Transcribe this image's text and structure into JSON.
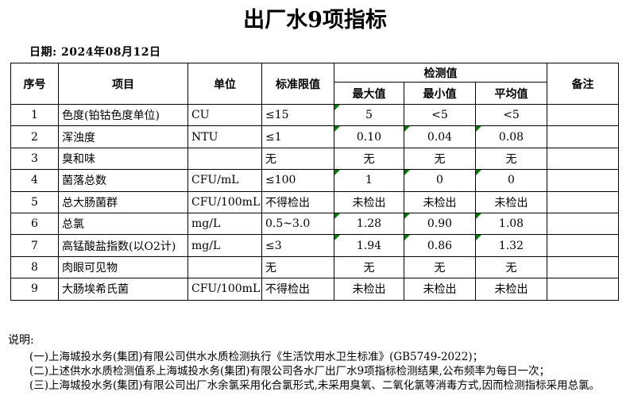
{
  "page": {
    "title": "出厂水9项指标",
    "date_line": "日期: 2024年08月12日"
  },
  "colors": {
    "background": "#ffffff",
    "text": "#000000",
    "table_border": "#000000",
    "accent_green": "#008000"
  },
  "table": {
    "headers": {
      "no": "序号",
      "item": "项目",
      "unit": "单位",
      "limit": "标准限值",
      "detection": "检测值",
      "max": "最大值",
      "min": "最小值",
      "avg": "平均值",
      "remark": "备注"
    },
    "rows": [
      {
        "no": "1",
        "item": "色度(铂钴色度单位)",
        "unit": "CU",
        "limit": "≤15",
        "max": "5",
        "min": "<5",
        "avg": "<5",
        "green_marks": [
          "max"
        ]
      },
      {
        "no": "2",
        "item": "浑浊度",
        "unit": "NTU",
        "limit": "≤1",
        "max": "0.10",
        "min": "0.04",
        "avg": "0.08",
        "green_marks": [
          "max",
          "min",
          "avg"
        ]
      },
      {
        "no": "3",
        "item": "臭和味",
        "unit": "",
        "limit": "无",
        "max": "无",
        "min": "无",
        "avg": "无",
        "green_marks": []
      },
      {
        "no": "4",
        "item": "菌落总数",
        "unit": "CFU/mL",
        "limit": "≤100",
        "max": "1",
        "min": "0",
        "avg": "0",
        "green_marks": [
          "max",
          "min",
          "avg"
        ]
      },
      {
        "no": "5",
        "item": "总大肠菌群",
        "unit": "CFU/100mL",
        "limit": "不得检出",
        "max": "未检出",
        "min": "未检出",
        "avg": "未检出",
        "green_marks": []
      },
      {
        "no": "6",
        "item": "总氯",
        "unit": "mg/L",
        "limit": "0.5~3.0",
        "max": "1.28",
        "min": "0.90",
        "avg": "1.08",
        "green_marks": [
          "max",
          "min",
          "avg"
        ]
      },
      {
        "no": "7",
        "item": "高锰酸盐指数(以O2计)",
        "unit": "mg/L",
        "limit": "≤3",
        "max": "1.94",
        "min": "0.86",
        "avg": "1.32",
        "green_marks": [
          "max",
          "min",
          "avg"
        ]
      },
      {
        "no": "8",
        "item": "肉眼可见物",
        "unit": "",
        "limit": "无",
        "max": "无",
        "min": "无",
        "avg": "无",
        "green_marks": []
      },
      {
        "no": "9",
        "item": "大肠埃希氏菌",
        "unit": "CFU/100mL",
        "limit": "不得检出",
        "max": "未检出",
        "min": "未检出",
        "avg": "未检出",
        "green_marks": []
      }
    ]
  },
  "notes": {
    "label": "说明:",
    "items": [
      "(一)上海城投水务(集团)有限公司供水水质检测执行《生活饮用水卫生标准》(GB5749-2022)；",
      "(二)上述供水水质检测值系上海城投水务(集团)有限公司各水厂出厂水9项指标检测结果,公布频率为每日一次；",
      "(三)上海城投水务(集团)有限公司出厂水余氯采用化合氯形式,未采用臭氧、二氧化氯等消毒方式,因而检测指标采用总氯。"
    ]
  }
}
